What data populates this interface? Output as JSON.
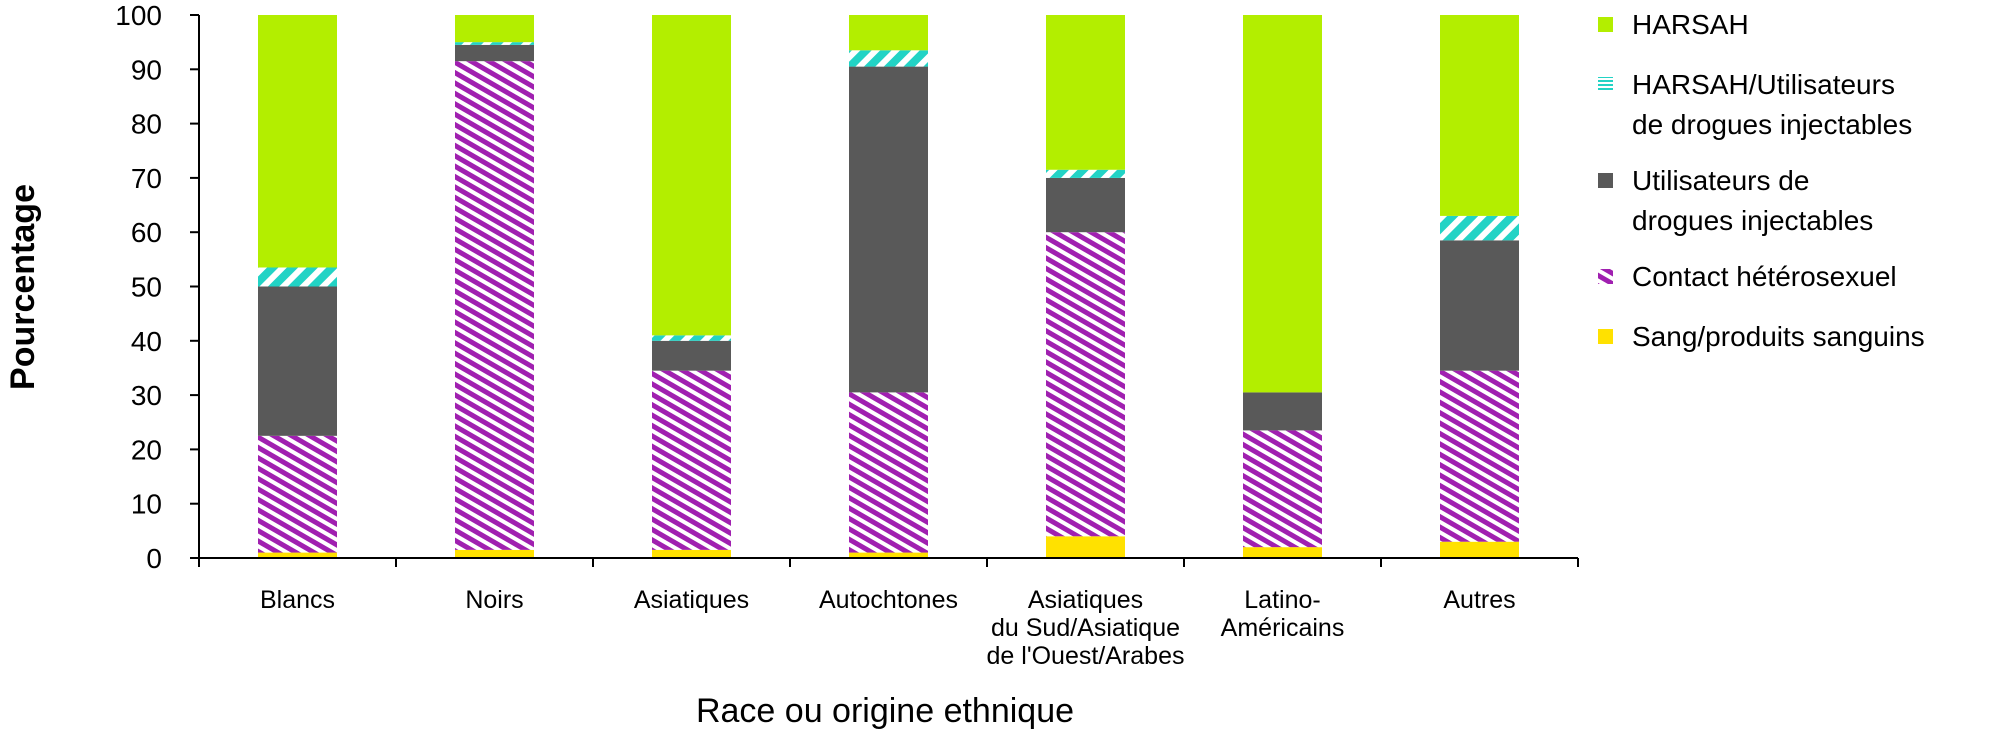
{
  "chart_data": {
    "type": "bar",
    "stacked": true,
    "title": "",
    "xlabel": "Race ou origine ethnique",
    "ylabel": "Pourcentage",
    "ylim": [
      0,
      100
    ],
    "yticks": [
      0,
      10,
      20,
      30,
      40,
      50,
      60,
      70,
      80,
      90,
      100
    ],
    "categories": [
      [
        "Blancs"
      ],
      [
        "Noirs"
      ],
      [
        "Asiatiques"
      ],
      [
        "Autochtones"
      ],
      [
        "Asiatiques",
        "du Sud/Asiatique",
        "de l'Ouest/Arabes"
      ],
      [
        "Latino-",
        "Américains"
      ],
      [
        "Autres"
      ]
    ],
    "series": [
      {
        "name": "Sang/produits sanguins",
        "legend_lines": [
          "Sang/produits sanguins"
        ],
        "color": "#FFE100",
        "pattern": "solid",
        "values": [
          1,
          1.5,
          1.5,
          1,
          4,
          2,
          3
        ]
      },
      {
        "name": "Contact hétérosexuel",
        "legend_lines": [
          "Contact hétérosexuel"
        ],
        "color": "#A020B0",
        "pattern": "diag-hatch",
        "values": [
          21.5,
          90,
          33,
          29.5,
          56,
          21.5,
          31.5
        ]
      },
      {
        "name": "Utilisateurs de drogues injectables",
        "legend_lines": [
          "Utilisateurs de",
          "drogues injectables"
        ],
        "color": "#595959",
        "pattern": "solid",
        "values": [
          27.5,
          3,
          5.5,
          60,
          10,
          7,
          24
        ]
      },
      {
        "name": "HARSAH/Utilisateurs de drogues injectables",
        "legend_lines": [
          "HARSAH/Utilisateurs",
          "de drogues injectables"
        ],
        "color": "#22D3C5",
        "pattern": "wide-diag",
        "values": [
          3.5,
          0.5,
          1,
          3,
          1.5,
          0,
          4.5
        ]
      },
      {
        "name": "HARSAH",
        "legend_lines": [
          "HARSAH"
        ],
        "color": "#B3EE00",
        "pattern": "solid",
        "values": [
          46.5,
          5,
          59,
          6.5,
          28.5,
          69.5,
          37
        ]
      }
    ],
    "legend_position": "right",
    "grid": false
  }
}
